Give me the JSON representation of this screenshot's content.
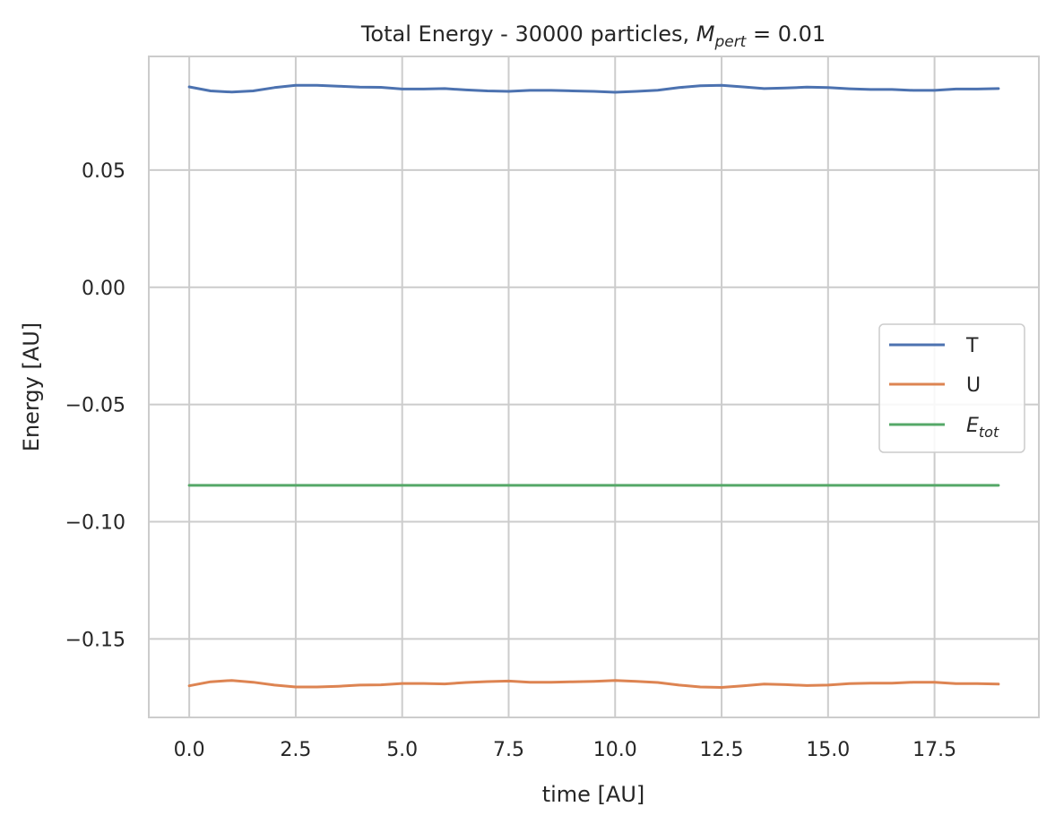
{
  "chart_data": {
    "type": "line",
    "title_prefix": "Total Energy - 30000 particles, ",
    "title_math_base": "M",
    "title_math_sub": "pert",
    "title_suffix": " = 0.01",
    "xlabel": "time [AU]",
    "ylabel": "Energy [AU]",
    "xlim": [
      -0.95,
      19.95
    ],
    "ylim": [
      -0.1835,
      0.0985
    ],
    "xticks": [
      0.0,
      2.5,
      5.0,
      7.5,
      10.0,
      12.5,
      15.0,
      17.5
    ],
    "xtick_labels": [
      "0.0",
      "2.5",
      "5.0",
      "7.5",
      "10.0",
      "12.5",
      "15.0",
      "17.5"
    ],
    "yticks": [
      0.05,
      0.0,
      -0.05,
      -0.1,
      -0.15
    ],
    "ytick_labels": [
      "0.05",
      "0.00",
      "−0.05",
      "−0.10",
      "−0.15"
    ],
    "grid": true,
    "legend_position": "center-right",
    "x": [
      0.0,
      0.5,
      1.0,
      1.5,
      2.0,
      2.5,
      3.0,
      3.5,
      4.0,
      4.5,
      5.0,
      5.5,
      6.0,
      6.5,
      7.0,
      7.5,
      8.0,
      8.5,
      9.0,
      9.5,
      10.0,
      10.5,
      11.0,
      11.5,
      12.0,
      12.5,
      13.0,
      13.5,
      14.0,
      14.5,
      15.0,
      15.5,
      16.0,
      16.5,
      17.0,
      17.5,
      18.0,
      18.5,
      19.0
    ],
    "series": [
      {
        "name": "T",
        "color": "#4c72b0",
        "values": [
          0.0855,
          0.0838,
          0.0833,
          0.0838,
          0.0852,
          0.0862,
          0.0862,
          0.0858,
          0.0854,
          0.0853,
          0.0846,
          0.0846,
          0.0848,
          0.0842,
          0.0838,
          0.0836,
          0.084,
          0.084,
          0.0838,
          0.0836,
          0.0832,
          0.0836,
          0.0841,
          0.0852,
          0.086,
          0.0862,
          0.0855,
          0.0848,
          0.085,
          0.0854,
          0.0852,
          0.0847,
          0.0844,
          0.0844,
          0.084,
          0.084,
          0.0846,
          0.0846,
          0.0848
        ]
      },
      {
        "name": "U",
        "color": "#dd8452",
        "values": [
          -0.17,
          -0.1683,
          -0.1677,
          -0.1685,
          -0.1697,
          -0.1705,
          -0.1705,
          -0.1702,
          -0.1697,
          -0.1696,
          -0.169,
          -0.169,
          -0.1692,
          -0.1686,
          -0.1682,
          -0.168,
          -0.1685,
          -0.1685,
          -0.1683,
          -0.1681,
          -0.1677,
          -0.1681,
          -0.1686,
          -0.1697,
          -0.1705,
          -0.1707,
          -0.17,
          -0.1693,
          -0.1695,
          -0.1699,
          -0.1697,
          -0.1691,
          -0.1689,
          -0.1689,
          -0.1685,
          -0.1685,
          -0.1691,
          -0.1691,
          -0.1693
        ]
      },
      {
        "name_base": "E",
        "name_sub": "tot",
        "color": "#55a868",
        "values": [
          -0.0845,
          -0.0845,
          -0.0845,
          -0.0845,
          -0.0845,
          -0.0845,
          -0.0845,
          -0.0845,
          -0.0845,
          -0.0845,
          -0.0845,
          -0.0845,
          -0.0845,
          -0.0845,
          -0.0845,
          -0.0845,
          -0.0845,
          -0.0845,
          -0.0845,
          -0.0845,
          -0.0845,
          -0.0845,
          -0.0845,
          -0.0845,
          -0.0845,
          -0.0845,
          -0.0845,
          -0.0845,
          -0.0845,
          -0.0845,
          -0.0845,
          -0.0845,
          -0.0845,
          -0.0845,
          -0.0845,
          -0.0845,
          -0.0845,
          -0.0845,
          -0.0845
        ]
      }
    ]
  }
}
